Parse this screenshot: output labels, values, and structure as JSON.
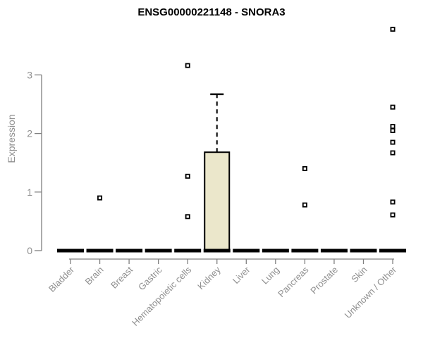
{
  "chart_data": {
    "type": "boxplot",
    "title": "ENSG00000221148 - SNORA3",
    "ylabel": "Expression",
    "xlabel": "",
    "ylim": [
      0,
      3.9
    ],
    "yticks": [
      0,
      1,
      2,
      3
    ],
    "grid": false,
    "legend_position": "none",
    "categories": [
      "Bladder",
      "Brain",
      "Breast",
      "Gastric",
      "Hematopoietic cells",
      "Kidney",
      "Liver",
      "Lung",
      "Pancreas",
      "Prostate",
      "Skin",
      "Unknown / Other"
    ],
    "boxes": [
      {
        "category": "Bladder",
        "low": 0,
        "q1": 0,
        "median": 0,
        "q3": 0,
        "high": 0,
        "outliers": []
      },
      {
        "category": "Brain",
        "low": 0,
        "q1": 0,
        "median": 0,
        "q3": 0,
        "high": 0,
        "outliers": [
          0.9
        ]
      },
      {
        "category": "Breast",
        "low": 0,
        "q1": 0,
        "median": 0,
        "q3": 0,
        "high": 0,
        "outliers": []
      },
      {
        "category": "Gastric",
        "low": 0,
        "q1": 0,
        "median": 0,
        "q3": 0,
        "high": 0,
        "outliers": []
      },
      {
        "category": "Hematopoietic cells",
        "low": 0,
        "q1": 0,
        "median": 0,
        "q3": 0,
        "high": 0,
        "outliers": [
          3.16,
          1.27,
          0.58
        ]
      },
      {
        "category": "Kidney",
        "low": 0,
        "q1": 0,
        "median": 0,
        "q3": 1.68,
        "high": 2.67,
        "outliers": []
      },
      {
        "category": "Liver",
        "low": 0,
        "q1": 0,
        "median": 0,
        "q3": 0,
        "high": 0,
        "outliers": []
      },
      {
        "category": "Lung",
        "low": 0,
        "q1": 0,
        "median": 0,
        "q3": 0,
        "high": 0,
        "outliers": []
      },
      {
        "category": "Pancreas",
        "low": 0,
        "q1": 0,
        "median": 0,
        "q3": 0,
        "high": 0,
        "outliers": [
          1.4,
          0.78
        ]
      },
      {
        "category": "Prostate",
        "low": 0,
        "q1": 0,
        "median": 0,
        "q3": 0,
        "high": 0,
        "outliers": []
      },
      {
        "category": "Skin",
        "low": 0,
        "q1": 0,
        "median": 0,
        "q3": 0,
        "high": 0,
        "outliers": []
      },
      {
        "category": "Unknown / Other",
        "low": 0,
        "q1": 0,
        "median": 0,
        "q3": 0,
        "high": 0,
        "outliers": [
          3.78,
          2.45,
          2.12,
          2.05,
          1.85,
          1.67,
          0.83,
          0.61
        ]
      }
    ],
    "colors": {
      "box_fill": "#ebe7cb",
      "box_stroke": "#000000",
      "median": "#000000",
      "whisker": "#000000",
      "outlier_stroke": "#000000",
      "outlier_fill": "#ffffff",
      "axis_line": "#7f7f7f",
      "tick_text": "#8f8f8f",
      "title_text": "#000000",
      "background": "#ffffff"
    }
  }
}
